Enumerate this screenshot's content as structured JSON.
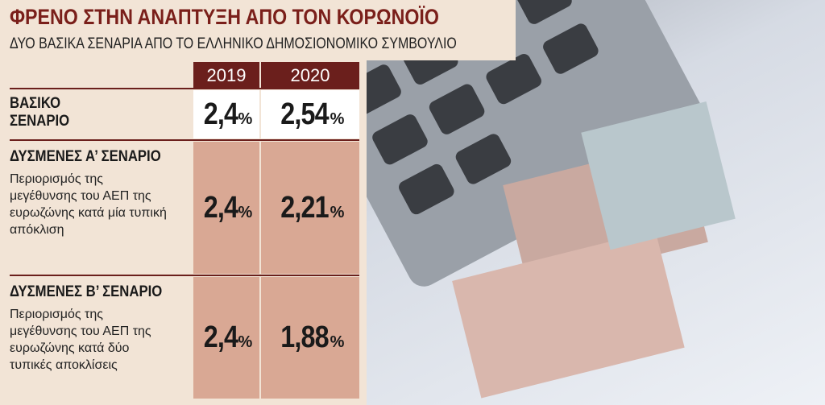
{
  "header": {
    "title": "ΦΡΕΝΟ ΣΤΗΝ ΑΝΑΠΤΥΞΗ ΑΠΟ ΤΟΝ ΚΟΡΩΝΟΪΟ",
    "subtitle": "ΔΥΟ ΒΑΣΙΚΑ ΣΕΝΑΡΙΑ ΑΠΟ ΤΟ ΕΛΛΗΝΙΚΟ ΔΗΜΟΣΙΟΝΟΜΙΚΟ ΣΥΜΒΟΥΛΙΟ"
  },
  "table": {
    "columns": [
      "2019",
      "2020"
    ],
    "rows": [
      {
        "label": "ΒΑΣΙΚΟ ΣΕΝΑΡΙΟ",
        "cells": [
          {
            "value": "2,4",
            "unit": "%"
          },
          {
            "value": "2,54",
            "unit": "%"
          }
        ]
      },
      {
        "label": "ΔΥΣΜΕΝΕΣ Α’ ΣΕΝΑΡΙΟ",
        "description": "Περιορισμός της μεγέθυνσης του ΑΕΠ της ευρωζώνης κατά μία τυπική απόκλιση",
        "cells": [
          {
            "value": "2,4",
            "unit": "%"
          },
          {
            "value": "2,21",
            "unit": "%"
          }
        ]
      },
      {
        "label": "ΔΥΣΜΕΝΕΣ Β’ ΣΕΝΑΡΙΟ",
        "description": "Περιορισμός της μεγέθυνσης του ΑΕΠ της ευρωζώνης κατά δύο τυπικές αποκλίσεις",
        "cells": [
          {
            "value": "2,4",
            "unit": "%"
          },
          {
            "value": "1,88",
            "unit": "%"
          }
        ]
      }
    ]
  }
}
